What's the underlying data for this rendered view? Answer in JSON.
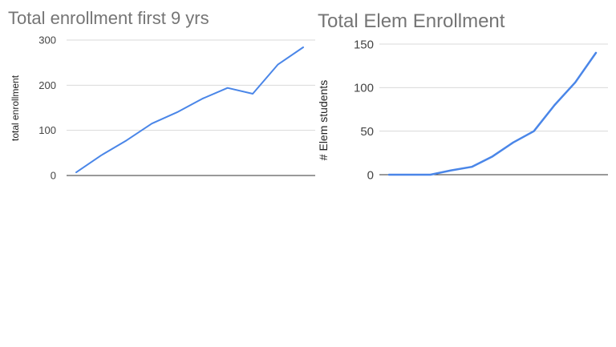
{
  "chart_data": [
    {
      "type": "line",
      "title": "Total enrollment first 9 yrs",
      "xlabel": "",
      "ylabel": "total enrollment",
      "ylim": [
        0,
        300
      ],
      "yticks": [
        "0",
        "100",
        "200",
        "300"
      ],
      "grid": true,
      "legend": "none",
      "series": [
        {
          "values": [
            7,
            45,
            78,
            115,
            140,
            170,
            194,
            181,
            246,
            284
          ]
        }
      ],
      "colors": {
        "line": "#4a86e8",
        "title": "#757575",
        "grid": "#d9d9d9",
        "axis": "#333333",
        "tick": "#444444"
      }
    },
    {
      "type": "line",
      "title": "Total Elem Enrollment",
      "xlabel": "",
      "ylabel": "# Elem students",
      "ylim": [
        0,
        150
      ],
      "yticks": [
        "0",
        "50",
        "100",
        "150"
      ],
      "grid": true,
      "legend": "none",
      "series": [
        {
          "values": [
            0,
            0,
            0,
            5,
            9,
            21,
            37,
            50,
            80,
            106,
            140
          ]
        }
      ],
      "colors": {
        "line": "#4a86e8",
        "title": "#757575",
        "grid": "#d9d9d9",
        "axis": "#333333",
        "tick": "#444444"
      }
    }
  ]
}
